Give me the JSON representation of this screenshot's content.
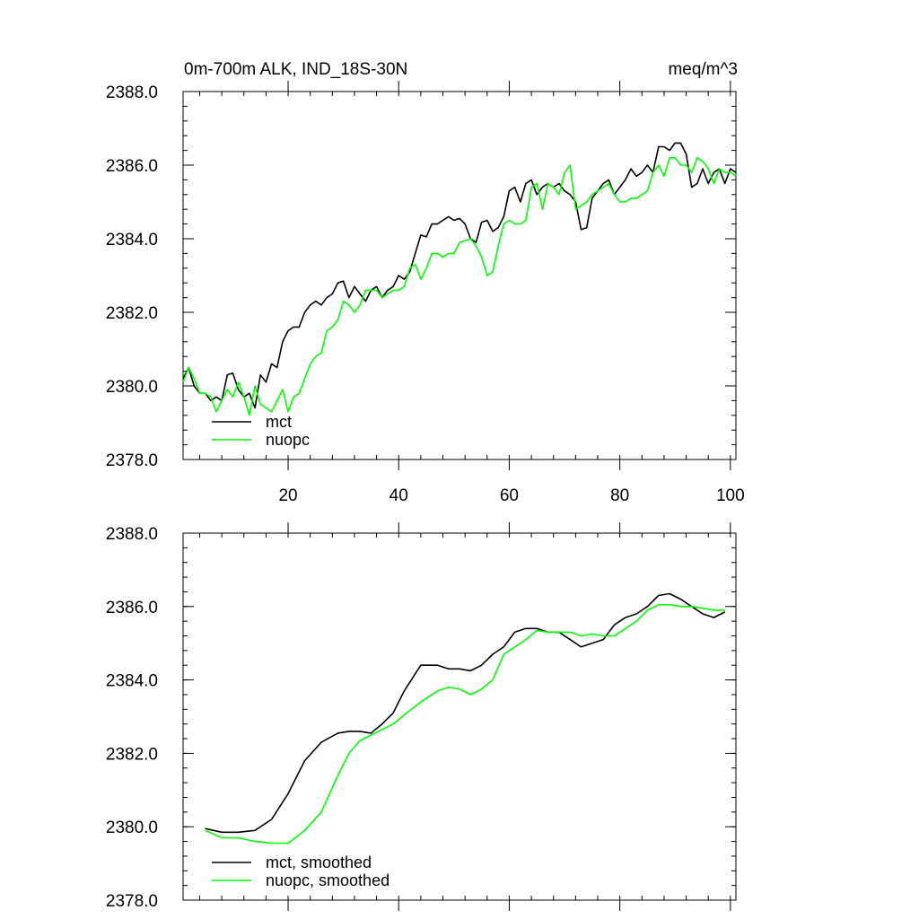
{
  "title_left": "0m-700m ALK, IND_18S-30N",
  "title_right": "meq/m^3",
  "colors": {
    "mct": "#000000",
    "nuopc": "#00ff00"
  },
  "chart_data": [
    {
      "type": "line",
      "panel": "top",
      "title": "0m-700m ALK, IND_18S-30N",
      "units": "meq/m^3",
      "xlim": [
        1,
        101
      ],
      "ylim": [
        2378.0,
        2388.0
      ],
      "xticks": [
        20,
        40,
        60,
        80,
        100
      ],
      "xtick_labels": [
        "20",
        "40",
        "60",
        "80",
        "100"
      ],
      "yticks": [
        2378.0,
        2380.0,
        2382.0,
        2384.0,
        2386.0,
        2388.0
      ],
      "ytick_labels": [
        "2378.0",
        "2380.0",
        "2382.0",
        "2384.0",
        "2386.0",
        "2388.0"
      ],
      "legend": [
        "mct",
        "nuopc"
      ],
      "series": [
        {
          "name": "mct",
          "x": [
            1,
            2,
            3,
            4,
            5,
            6,
            7,
            8,
            9,
            10,
            11,
            12,
            13,
            14,
            15,
            16,
            17,
            18,
            19,
            20,
            21,
            22,
            23,
            24,
            25,
            26,
            27,
            28,
            29,
            30,
            31,
            32,
            33,
            34,
            35,
            36,
            37,
            38,
            39,
            40,
            41,
            42,
            43,
            44,
            45,
            46,
            47,
            48,
            49,
            50,
            51,
            52,
            53,
            54,
            55,
            56,
            57,
            58,
            59,
            60,
            61,
            62,
            63,
            64,
            65,
            66,
            67,
            68,
            69,
            70,
            71,
            72,
            73,
            74,
            75,
            76,
            77,
            78,
            79,
            80,
            81,
            82,
            83,
            84,
            85,
            86,
            87,
            88,
            89,
            90,
            91,
            92,
            93,
            94,
            95,
            96,
            97,
            98,
            99,
            100,
            101
          ],
          "values": [
            2380.2,
            2380.5,
            2380.0,
            2379.8,
            2379.8,
            2379.6,
            2379.7,
            2379.6,
            2380.3,
            2380.35,
            2379.9,
            2379.7,
            2379.8,
            2379.4,
            2380.3,
            2380.1,
            2380.6,
            2380.5,
            2381.2,
            2381.5,
            2381.6,
            2381.6,
            2382.0,
            2382.2,
            2382.3,
            2382.2,
            2382.4,
            2382.5,
            2382.8,
            2382.85,
            2382.4,
            2382.7,
            2382.5,
            2382.3,
            2382.6,
            2382.7,
            2382.4,
            2382.6,
            2382.7,
            2383.0,
            2382.9,
            2383.1,
            2383.6,
            2384.1,
            2384.05,
            2384.4,
            2384.4,
            2384.5,
            2384.6,
            2384.5,
            2384.55,
            2384.4,
            2384.0,
            2383.9,
            2384.45,
            2384.5,
            2384.2,
            2384.3,
            2384.6,
            2385.3,
            2385.4,
            2385.0,
            2385.5,
            2385.6,
            2385.2,
            2385.4,
            2385.5,
            2385.4,
            2385.5,
            2385.3,
            2385.2,
            2385.0,
            2384.25,
            2384.3,
            2385.1,
            2385.3,
            2385.5,
            2385.6,
            2385.2,
            2385.4,
            2385.6,
            2385.9,
            2385.7,
            2385.8,
            2386.0,
            2385.8,
            2386.5,
            2386.5,
            2386.4,
            2386.6,
            2386.6,
            2386.3,
            2385.4,
            2385.5,
            2385.9,
            2385.5,
            2385.8,
            2385.9,
            2385.5,
            2385.9,
            2385.8
          ]
        },
        {
          "name": "nuopc",
          "x": [
            1,
            2,
            3,
            4,
            5,
            6,
            7,
            8,
            9,
            10,
            11,
            12,
            13,
            14,
            15,
            16,
            17,
            18,
            19,
            20,
            21,
            22,
            23,
            24,
            25,
            26,
            27,
            28,
            29,
            30,
            31,
            32,
            33,
            34,
            35,
            36,
            37,
            38,
            39,
            40,
            41,
            42,
            43,
            44,
            45,
            46,
            47,
            48,
            49,
            50,
            51,
            52,
            53,
            54,
            55,
            56,
            57,
            58,
            59,
            60,
            61,
            62,
            63,
            64,
            65,
            66,
            67,
            68,
            69,
            70,
            71,
            72,
            73,
            74,
            75,
            76,
            77,
            78,
            79,
            80,
            81,
            82,
            83,
            84,
            85,
            86,
            87,
            88,
            89,
            90,
            91,
            92,
            93,
            94,
            95,
            96,
            97,
            98,
            99,
            100,
            101
          ],
          "values": [
            2380.1,
            2380.5,
            2380.2,
            2379.8,
            2379.8,
            2379.7,
            2379.3,
            2379.6,
            2379.9,
            2379.7,
            2380.1,
            2379.7,
            2379.2,
            2380.0,
            2379.5,
            2379.4,
            2379.3,
            2379.6,
            2379.9,
            2379.3,
            2379.7,
            2379.8,
            2380.2,
            2380.6,
            2380.8,
            2380.9,
            2381.5,
            2381.6,
            2381.8,
            2382.3,
            2382.2,
            2382.0,
            2382.2,
            2382.6,
            2382.6,
            2382.6,
            2382.4,
            2382.5,
            2382.6,
            2382.6,
            2382.7,
            2383.2,
            2383.3,
            2382.9,
            2383.2,
            2383.6,
            2383.6,
            2383.5,
            2383.6,
            2383.6,
            2383.9,
            2383.95,
            2384.0,
            2383.8,
            2383.5,
            2383.0,
            2383.1,
            2383.8,
            2384.4,
            2384.5,
            2384.4,
            2384.4,
            2384.5,
            2385.4,
            2385.5,
            2384.8,
            2385.5,
            2385.4,
            2385.2,
            2385.8,
            2386.0,
            2384.8,
            2384.9,
            2385.0,
            2385.2,
            2385.3,
            2385.4,
            2385.5,
            2385.2,
            2385.0,
            2385.0,
            2385.1,
            2385.1,
            2385.2,
            2385.3,
            2385.8,
            2386.0,
            2385.7,
            2386.2,
            2386.2,
            2386.0,
            2386.0,
            2385.8,
            2386.2,
            2386.1,
            2385.9,
            2385.5,
            2385.9,
            2385.8,
            2385.8,
            2385.7
          ]
        }
      ]
    },
    {
      "type": "line",
      "panel": "bottom",
      "xlim": [
        1,
        101
      ],
      "ylim": [
        2378.0,
        2388.0
      ],
      "xticks": [
        20,
        40,
        60,
        80,
        100
      ],
      "yticks": [
        2378.0,
        2380.0,
        2382.0,
        2384.0,
        2386.0,
        2388.0
      ],
      "ytick_labels": [
        "2378.0",
        "2380.0",
        "2382.0",
        "2384.0",
        "2386.0",
        "2388.0"
      ],
      "legend": [
        "mct, smoothed",
        "nuopc, smoothed"
      ],
      "series": [
        {
          "name": "mct, smoothed",
          "x": [
            5,
            8,
            11,
            14,
            17,
            20,
            23,
            26,
            29,
            31,
            33,
            35,
            37,
            39,
            41,
            44,
            47,
            49,
            51,
            53,
            55,
            57,
            59,
            61,
            63,
            65,
            67,
            69,
            71,
            73,
            75,
            77,
            79,
            81,
            83,
            85,
            87,
            89,
            91,
            93,
            95,
            97,
            99
          ],
          "values": [
            2379.95,
            2379.85,
            2379.85,
            2379.9,
            2380.2,
            2380.9,
            2381.8,
            2382.3,
            2382.55,
            2382.6,
            2382.6,
            2382.55,
            2382.8,
            2383.1,
            2383.7,
            2384.4,
            2384.4,
            2384.3,
            2384.3,
            2384.25,
            2384.4,
            2384.7,
            2384.9,
            2385.3,
            2385.4,
            2385.4,
            2385.3,
            2385.3,
            2385.1,
            2384.9,
            2385.0,
            2385.1,
            2385.5,
            2385.7,
            2385.8,
            2386.0,
            2386.3,
            2386.35,
            2386.2,
            2386.0,
            2385.8,
            2385.7,
            2385.85
          ]
        },
        {
          "name": "nuopc, smoothed",
          "x": [
            5,
            8,
            11,
            14,
            17,
            20,
            23,
            26,
            29,
            31,
            33,
            35,
            37,
            39,
            41,
            44,
            47,
            49,
            51,
            53,
            55,
            57,
            59,
            61,
            63,
            65,
            67,
            69,
            71,
            73,
            75,
            77,
            79,
            81,
            83,
            85,
            87,
            89,
            91,
            93,
            95,
            97,
            99
          ],
          "values": [
            2379.9,
            2379.7,
            2379.7,
            2379.6,
            2379.55,
            2379.55,
            2379.9,
            2380.4,
            2381.4,
            2382.0,
            2382.35,
            2382.5,
            2382.65,
            2382.8,
            2383.05,
            2383.4,
            2383.7,
            2383.8,
            2383.75,
            2383.6,
            2383.75,
            2384.0,
            2384.7,
            2384.9,
            2385.1,
            2385.35,
            2385.3,
            2385.3,
            2385.3,
            2385.2,
            2385.25,
            2385.2,
            2385.2,
            2385.4,
            2385.6,
            2385.9,
            2386.05,
            2386.05,
            2386.0,
            2386.0,
            2385.95,
            2385.9,
            2385.9
          ]
        }
      ]
    }
  ]
}
